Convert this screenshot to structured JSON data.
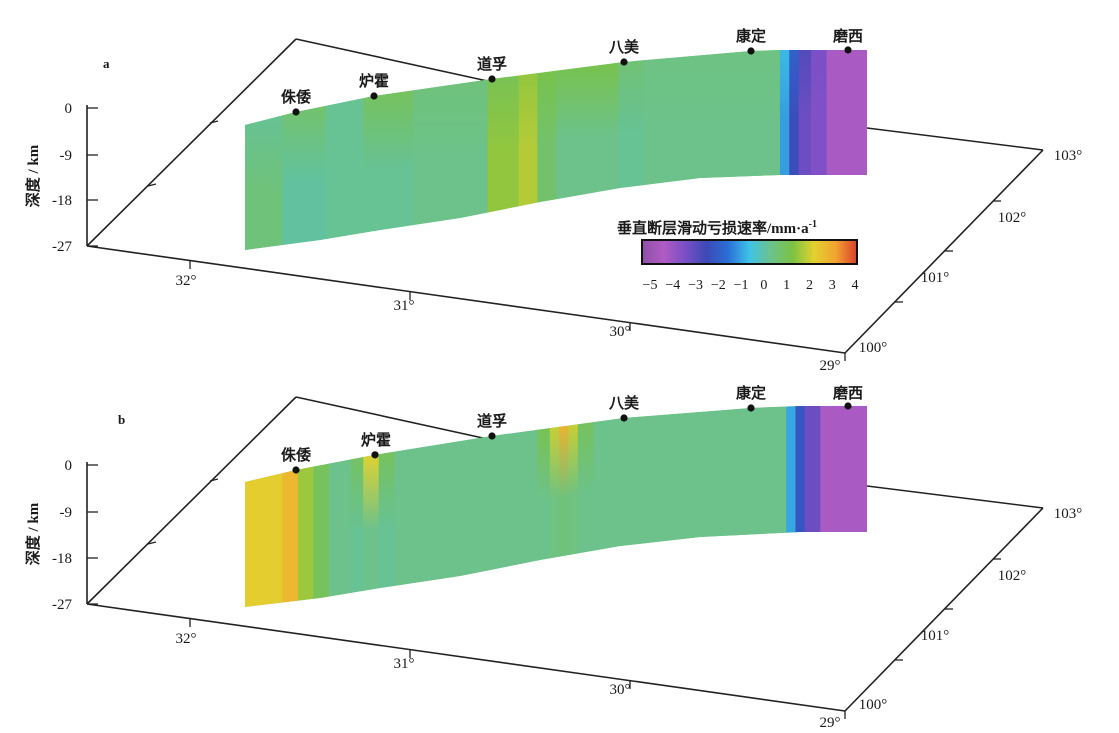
{
  "chart_data": [
    {
      "panel": "a",
      "type": "heatmap",
      "ylabel": "深度 / km",
      "depth_ticks": [
        "0",
        "-9",
        "-18",
        "-27"
      ],
      "lat_ticks": [
        "32°",
        "31°",
        "30°",
        "29°"
      ],
      "lon_ticks": [
        "100°",
        "101°",
        "102°",
        "103°"
      ],
      "stations": [
        "侏倭",
        "炉霍",
        "道孚",
        "八美",
        "康定",
        "磨西"
      ],
      "profile_segments": [
        {
          "from": 0.0,
          "to": 0.06,
          "surface": 0.3,
          "deep": 0.6
        },
        {
          "from": 0.06,
          "to": 0.13,
          "surface": 0.8,
          "deep": 0.2
        },
        {
          "from": 0.13,
          "to": 0.19,
          "surface": 0.3,
          "deep": 0.3
        },
        {
          "from": 0.19,
          "to": 0.27,
          "surface": 1.0,
          "deep": 0.3
        },
        {
          "from": 0.27,
          "to": 0.39,
          "surface": 0.6,
          "deep": 0.4
        },
        {
          "from": 0.39,
          "to": 0.44,
          "surface": 1.1,
          "deep": 1.5
        },
        {
          "from": 0.44,
          "to": 0.47,
          "surface": 1.5,
          "deep": 1.8
        },
        {
          "from": 0.47,
          "to": 0.5,
          "surface": 1.2,
          "deep": 0.8
        },
        {
          "from": 0.5,
          "to": 0.6,
          "surface": 1.2,
          "deep": 0.4
        },
        {
          "from": 0.6,
          "to": 0.64,
          "surface": 0.7,
          "deep": 0.3
        },
        {
          "from": 0.64,
          "to": 0.86,
          "surface": 0.5,
          "deep": 0.4
        },
        {
          "from": 0.86,
          "to": 0.875,
          "surface": -0.6,
          "deep": -0.9
        },
        {
          "from": 0.875,
          "to": 0.89,
          "surface": -1.7,
          "deep": -2.2
        },
        {
          "from": 0.89,
          "to": 0.91,
          "surface": -2.6,
          "deep": -3.0
        },
        {
          "from": 0.91,
          "to": 0.935,
          "surface": -3.2,
          "deep": -3.3
        },
        {
          "from": 0.935,
          "to": 1.0,
          "surface": -4.0,
          "deep": -4.0
        }
      ]
    },
    {
      "panel": "b",
      "type": "heatmap",
      "ylabel": "深度 / km",
      "depth_ticks": [
        "0",
        "-9",
        "-18",
        "-27"
      ],
      "lat_ticks": [
        "32°",
        "31°",
        "30°",
        "29°"
      ],
      "lon_ticks": [
        "100°",
        "101°",
        "102°",
        "103°"
      ],
      "stations": [
        "侏倭",
        "炉霍",
        "道孚",
        "八美",
        "康定",
        "磨西"
      ],
      "profile_segments": [
        {
          "from": 0.0,
          "to": 0.06,
          "surface": 2.3,
          "deep": 2.3
        },
        {
          "from": 0.06,
          "to": 0.085,
          "surface": 2.7,
          "deep": 2.7
        },
        {
          "from": 0.085,
          "to": 0.11,
          "surface": 1.6,
          "deep": 1.6
        },
        {
          "from": 0.11,
          "to": 0.135,
          "surface": 1.0,
          "deep": 1.0
        },
        {
          "from": 0.135,
          "to": 0.17,
          "surface": 0.4,
          "deep": 0.4
        },
        {
          "from": 0.17,
          "to": 0.19,
          "surface": 0.9,
          "deep": 0.3
        },
        {
          "from": 0.19,
          "to": 0.215,
          "surface": 2.2,
          "deep": 0.4
        },
        {
          "from": 0.215,
          "to": 0.24,
          "surface": 1.0,
          "deep": 0.3
        },
        {
          "from": 0.24,
          "to": 0.47,
          "surface": 0.4,
          "deep": 0.4
        },
        {
          "from": 0.47,
          "to": 0.49,
          "surface": 1.1,
          "deep": 0.4
        },
        {
          "from": 0.49,
          "to": 0.505,
          "surface": 2.0,
          "deep": 0.5
        },
        {
          "from": 0.505,
          "to": 0.52,
          "surface": 2.8,
          "deep": 0.6
        },
        {
          "from": 0.52,
          "to": 0.535,
          "surface": 2.0,
          "deep": 0.5
        },
        {
          "from": 0.535,
          "to": 0.56,
          "surface": 1.0,
          "deep": 0.4
        },
        {
          "from": 0.56,
          "to": 0.87,
          "surface": 0.4,
          "deep": 0.4
        },
        {
          "from": 0.87,
          "to": 0.885,
          "surface": -0.8,
          "deep": -0.8
        },
        {
          "from": 0.885,
          "to": 0.9,
          "surface": -2.0,
          "deep": -2.0
        },
        {
          "from": 0.9,
          "to": 0.925,
          "surface": -3.0,
          "deep": -3.0
        },
        {
          "from": 0.925,
          "to": 1.0,
          "surface": -4.0,
          "deep": -4.0
        }
      ]
    }
  ],
  "colorbar": {
    "title": "垂直断层滑动亏损速率/mm·a",
    "title_exponent": "-1",
    "min": -5,
    "max": 4,
    "ticks": [
      "-5",
      "-4",
      "-3",
      "-2",
      "-1",
      "0",
      "1",
      "2",
      "3",
      "4"
    ],
    "colors": [
      "#8e4fa8",
      "#b05cc3",
      "#7b4fc6",
      "#3d49b6",
      "#2a6fd6",
      "#3ec3e8",
      "#6cc28a",
      "#7bc244",
      "#e2d22f",
      "#f2a431",
      "#d9402a"
    ]
  }
}
